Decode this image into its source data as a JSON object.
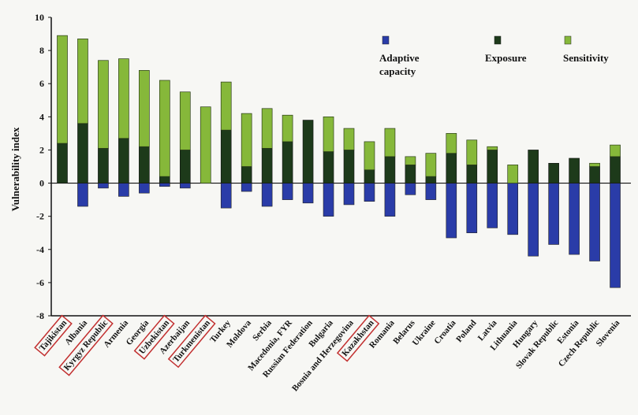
{
  "chart_data": {
    "type": "bar",
    "stacked": true,
    "ylabel": "Vulnerability index",
    "ylim": [
      -8,
      10
    ],
    "yticks": [
      "-8",
      "-6",
      "-4",
      "-2",
      "0",
      "2",
      "4",
      "6",
      "8",
      "10"
    ],
    "categories": [
      "Tajikistan",
      "Albania",
      "Kyrgyz Republic",
      "Armenia",
      "Georgia",
      "Uzbekistan",
      "Azerbaijan",
      "Turkmenistan",
      "Turkey",
      "Moldova",
      "Serbia",
      "Macedonia, FYR",
      "Russian Federation",
      "Bulgaria",
      "Bosnia and Herzegovina",
      "Kazakhstan",
      "Romania",
      "Belarus",
      "Ukraine",
      "Croatia",
      "Poland",
      "Latvia",
      "Lithuania",
      "Hungary",
      "Slovak Republic",
      "Estonia",
      "Czech Republic",
      "Slovenia"
    ],
    "highlighted": [
      "Tajikistan",
      "Kyrgyz Republic",
      "Uzbekistan",
      "Turkmenistan",
      "Kazakhstan"
    ],
    "series": [
      {
        "name": "Adaptive capacity",
        "color": "#2a3ca8",
        "values": [
          0,
          -1.4,
          -0.3,
          -0.8,
          -0.6,
          -0.2,
          -0.3,
          0,
          -1.5,
          -0.5,
          -1.4,
          -1.0,
          -1.2,
          -2.0,
          -1.3,
          -1.1,
          -2.0,
          -0.7,
          -1.0,
          -3.3,
          -3.0,
          -2.7,
          -3.1,
          -4.4,
          -3.7,
          -4.3,
          -4.7,
          -6.3
        ]
      },
      {
        "name": "Exposure",
        "color": "#1d3a1a",
        "values": [
          2.4,
          3.6,
          2.1,
          2.7,
          2.2,
          0.4,
          2.0,
          0,
          3.2,
          1.0,
          2.1,
          2.5,
          3.8,
          1.9,
          2.0,
          0.8,
          1.6,
          1.1,
          0.4,
          1.8,
          1.1,
          2.0,
          0,
          2.0,
          1.2,
          1.5,
          1.0,
          1.6
        ]
      },
      {
        "name": "Sensitivity",
        "color": "#86b83a",
        "values": [
          6.5,
          5.1,
          5.3,
          4.8,
          4.6,
          5.8,
          3.5,
          4.6,
          2.9,
          3.2,
          2.4,
          1.6,
          0,
          2.1,
          1.3,
          1.7,
          1.7,
          0.5,
          1.4,
          1.2,
          1.5,
          0.2,
          1.1,
          0,
          0,
          0,
          0.2,
          0.7
        ]
      }
    ],
    "legend": [
      {
        "label": "Adaptive",
        "label2": "capacity",
        "color": "#2a3ca8"
      },
      {
        "label": "Exposure",
        "label2": "",
        "color": "#1d3a1a"
      },
      {
        "label": "Sensitivity",
        "label2": "",
        "color": "#86b83a"
      }
    ],
    "legend_position": "top-right",
    "grid": false
  }
}
